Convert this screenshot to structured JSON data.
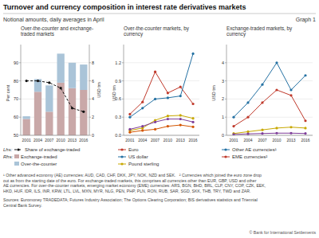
{
  "title": "Turnover and currency composition in interest rate derivatives markets",
  "subtitle": "Notional amounts, daily averages in April",
  "annotations": [
    "Graph 1",
    "¹ Other advanced economy (AE) currencies: AUD, CAD, CHF, DKK, JPY, NOK, NZD and SEK.   ² Currencies which joined the euro zone drop\nout as from the starting date of the euro. For exchange-traded markets, this comprises all currencies other than EUR, GBP, USD and other\nAE currencies. For over-the-counter markets, emerging market economy (EME) currencies: ARS, BGN, BHD, BRL, CLP, CNY, COP, CZK, EEK,\nHKD, HUF, IDR, ILS, INR, KRW, LTL, LVL, MXN, MYR, NLG, PEN, PHP, PLN, RON, RUB, SAR, SGD, SKK, THB, TRY, TWD and ZAR.",
    "Sources: Euromoney TRADEDATA; Futures Industry Association; The Options Clearing Corporation; BIS derivatives statistics and Triennial\nCentral Bank Survey.",
    "© Bank for International Settlements"
  ],
  "chart_data": [
    {
      "type": "bar",
      "title": "Over-the-counter and exchange-\ntraded markets",
      "categories": [
        "2001",
        "2004",
        "2007",
        "2010",
        "2013",
        "2016"
      ],
      "stacked": true,
      "grid": true,
      "ylabel": "Per cent",
      "y2label": "USD trn",
      "ylim": [
        50,
        100
      ],
      "yticks": [
        50,
        60,
        70,
        80,
        90
      ],
      "y2lim": [
        0,
        10
      ],
      "y2ticks": [
        0,
        2,
        4,
        6,
        8
      ],
      "annotations": [
        "Lhs:",
        "Rhs:"
      ],
      "series": [
        {
          "name": "Exchange-traded",
          "type": "bar",
          "axis": "y2",
          "color": "#c9a8a8",
          "values": [
            1.8,
            4.8,
            2.6,
            5.8,
            5.2,
            5.0
          ]
        },
        {
          "name": "Over-the-counter",
          "type": "bar",
          "axis": "y2",
          "color": "#aac4d8",
          "values": [
            0.3,
            1.4,
            2.9,
            3.2,
            2.8,
            2.8
          ]
        },
        {
          "name": "Share of exchange-traded",
          "type": "line",
          "color": "#111111",
          "line_style": "dashed",
          "marker": "circle",
          "values": [
            80,
            80,
            79,
            76,
            65,
            63
          ]
        }
      ]
    },
    {
      "type": "line",
      "title": "Over-the-counter markets, by\ncurrency",
      "categories": [
        "2001",
        "2004",
        "2007",
        "2010",
        "2013",
        "2016"
      ],
      "grid": true,
      "ylabel": "USD trn",
      "ylim": [
        0.0,
        1.5
      ],
      "yticks": [
        {
          "value": 0.0,
          "label": "0.0"
        },
        0.3,
        0.6,
        0.9,
        1.2
      ],
      "series": [
        {
          "name": "Euro",
          "color": "#c0392b",
          "marker": "circle",
          "values": [
            0.35,
            0.55,
            1.05,
            0.7,
            0.8,
            0.52
          ]
        },
        {
          "name": "US dollar",
          "color": "#2471a3",
          "marker": "circle",
          "values": [
            0.3,
            0.45,
            0.6,
            0.62,
            0.65,
            1.35
          ]
        },
        {
          "name": "Pound sterling",
          "color": "#c8a800",
          "marker": "circle",
          "values": [
            0.08,
            0.12,
            0.25,
            0.32,
            0.33,
            0.28
          ]
        },
        {
          "color": "#7d3c98",
          "marker": "circle",
          "values": [
            0.1,
            0.15,
            0.22,
            0.27,
            0.27,
            0.22
          ]
        },
        {
          "color": "#d35400",
          "marker": "circle",
          "values": [
            0.05,
            0.08,
            0.1,
            0.15,
            0.17,
            0.14
          ]
        }
      ]
    },
    {
      "type": "line",
      "title": "Exchange-traded markets, by\ncurrency",
      "categories": [
        "2001",
        "2004",
        "2007",
        "2010",
        "2013",
        "2016"
      ],
      "grid": true,
      "ylabel": "USD trn",
      "ylim": [
        0,
        5
      ],
      "yticks": [
        0,
        1,
        2,
        3,
        4
      ],
      "series": [
        {
          "name": "Other AE currencies¹",
          "color": "#2471a3",
          "marker": "circle",
          "values": [
            1.0,
            1.8,
            2.8,
            4.0,
            2.5,
            3.3
          ]
        },
        {
          "name": "EME currencies²",
          "color": "#c0392b",
          "marker": "circle",
          "values": [
            0.5,
            1.0,
            1.8,
            2.5,
            2.2,
            0.8
          ]
        },
        {
          "color": "#c8a800",
          "marker": "circle",
          "values": [
            0.1,
            0.2,
            0.3,
            0.4,
            0.45,
            0.4
          ]
        },
        {
          "color": "#7d3c98",
          "marker": "circle",
          "values": [
            0.05,
            0.08,
            0.1,
            0.12,
            0.12,
            0.1
          ]
        }
      ]
    }
  ]
}
